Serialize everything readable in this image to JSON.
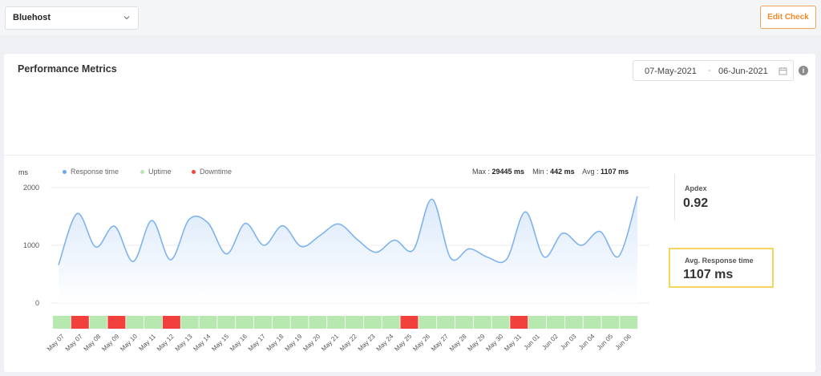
{
  "topbar": {
    "check_select": {
      "value": "Bluehost"
    },
    "edit_button": "Edit Check"
  },
  "panel": {
    "title": "Performance Metrics",
    "date_range": {
      "start": "07-May-2021",
      "separator": "-",
      "end": "06-Jun-2021"
    },
    "info_icon": "i"
  },
  "legend": {
    "units": "ms",
    "items": [
      {
        "label": "Response time",
        "color": "#6aa8f0"
      },
      {
        "label": "Uptime",
        "color": "#b6e8b0"
      },
      {
        "label": "Downtime",
        "color": "#f2413d"
      }
    ]
  },
  "stats": {
    "max_label": "Max :",
    "max_value": "29445 ms",
    "min_label": "Min :",
    "min_value": "442 ms",
    "avg_label": "Avg :",
    "avg_value": "1107 ms"
  },
  "side": {
    "apdex_label": "Apdex",
    "apdex_value": "0.92",
    "avg_label": "Avg. Response time",
    "avg_value": "1107 ms"
  },
  "colors": {
    "line": "#7fb3ee",
    "area": "#dbe9fb",
    "uptime": "#b6e8b0",
    "downtime": "#f2413d"
  },
  "chart_data": {
    "type": "area",
    "ylabel": "ms",
    "ylim": [
      0,
      2000
    ],
    "yticks": [
      0,
      1000,
      2000
    ],
    "grid": true,
    "x_labels": [
      "May 07",
      "May 07",
      "May 08",
      "May 09",
      "May 10",
      "May 11",
      "May 12",
      "May 13",
      "May 14",
      "May 15",
      "May 16",
      "May 17",
      "May 18",
      "May 19",
      "May 20",
      "May 21",
      "May 22",
      "May 23",
      "May 24",
      "May 25",
      "May 26",
      "May 27",
      "May 28",
      "May 29",
      "May 30",
      "May 31",
      "Jun 01",
      "Jun 02",
      "Jun 03",
      "Jun 04",
      "Jun 05",
      "Jun 06"
    ],
    "series": [
      {
        "name": "Response time",
        "values": [
          660,
          1550,
          970,
          1330,
          720,
          1430,
          750,
          1450,
          1390,
          850,
          1380,
          1000,
          1340,
          980,
          1170,
          1370,
          1100,
          880,
          1090,
          920,
          1800,
          780,
          940,
          790,
          760,
          1580,
          800,
          1210,
          1000,
          1240,
          810,
          1850
        ]
      }
    ],
    "status": [
      "up",
      "down",
      "up",
      "down",
      "up",
      "up",
      "down",
      "up",
      "up",
      "up",
      "up",
      "up",
      "up",
      "up",
      "up",
      "up",
      "up",
      "up",
      "up",
      "down",
      "up",
      "up",
      "up",
      "up",
      "up",
      "down",
      "up",
      "up",
      "up",
      "up",
      "up",
      "up"
    ]
  }
}
